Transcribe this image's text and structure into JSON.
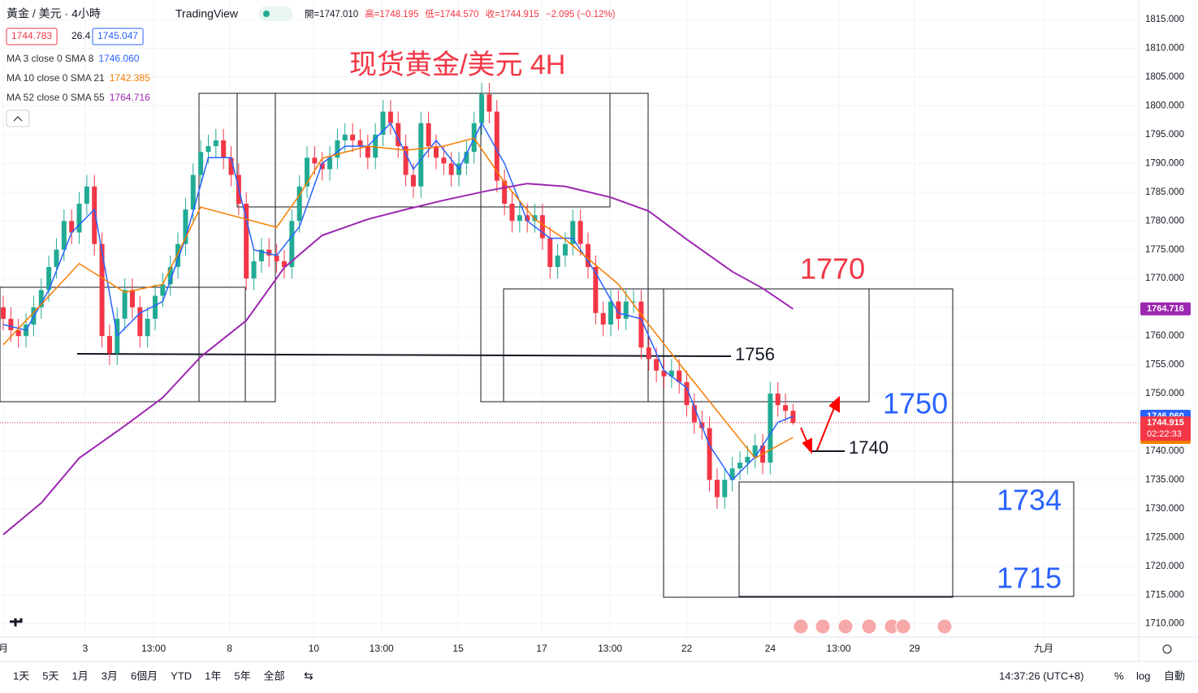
{
  "chart_data": {
    "type": "candlestick",
    "symbol": "黃金 / 美元 · 4小時",
    "brand": "TradingView",
    "ohlc_header": [
      "開=1747.010",
      "高=1748.195",
      "低=1744.570",
      "收=1744.915",
      "−2.095 (−0.12%)"
    ],
    "quote_boxes": [
      "1744.783",
      "26.4",
      "1745.047"
    ],
    "title": "现货黄金/美元 4H",
    "up_color": "#22ab94",
    "down_color": "#f23645",
    "open": [
      1765,
      1763,
      1761,
      1760,
      1762,
      1765,
      1768,
      1772,
      1775,
      1780,
      1778,
      1783,
      1786,
      1776,
      1760,
      1757,
      1763,
      1768,
      1765,
      1760,
      1763,
      1767,
      1769,
      1772,
      1776,
      1782,
      1788,
      1792,
      1793,
      1794,
      1791,
      1788,
      1783,
      1770,
      1773,
      1775,
      1774,
      1773,
      1772,
      1780,
      1786,
      1791,
      1790,
      1789,
      1791,
      1794,
      1795,
      1794,
      1793,
      1791,
      1795,
      1799,
      1797,
      1793,
      1788,
      1786,
      1797,
      1793,
      1791,
      1790,
      1788,
      1790,
      1792,
      1797,
      1802,
      1799,
      1787,
      1783,
      1780,
      1781,
      1780,
      1781,
      1777,
      1772,
      1774,
      1776,
      1780,
      1776,
      1772,
      1764,
      1762,
      1766,
      1763,
      1766,
      1766,
      1758,
      1756,
      1754,
      1753,
      1754,
      1752,
      1748,
      1745,
      1744,
      1735,
      1732,
      1735,
      1737,
      1738,
      1739,
      1741,
      1738,
      1750,
      1748,
      1747.01
    ],
    "high": [
      1767,
      1765,
      1763,
      1764,
      1767,
      1770,
      1774,
      1777,
      1782,
      1782,
      1785,
      1788,
      1788,
      1778,
      1762,
      1765,
      1770,
      1770,
      1767,
      1765,
      1769,
      1771,
      1774,
      1778,
      1784,
      1790,
      1794,
      1795,
      1796,
      1796,
      1793,
      1790,
      1785,
      1775,
      1777,
      1777,
      1776,
      1775,
      1782,
      1788,
      1793,
      1793,
      1792,
      1793,
      1796,
      1797,
      1797,
      1796,
      1795,
      1797,
      1801,
      1801,
      1799,
      1795,
      1790,
      1799,
      1799,
      1795,
      1793,
      1792,
      1792,
      1794,
      1799,
      1804,
      1804,
      1801,
      1789,
      1785,
      1783,
      1783,
      1783,
      1783,
      1779,
      1776,
      1778,
      1782,
      1782,
      1778,
      1774,
      1766,
      1768,
      1768,
      1768,
      1768,
      1768,
      1760,
      1758,
      1756,
      1756,
      1756,
      1754,
      1750,
      1747,
      1746,
      1737,
      1737,
      1739,
      1740,
      1741,
      1743,
      1743,
      1752,
      1752,
      1750,
      1748.195
    ],
    "low": [
      1761,
      1759,
      1758,
      1758,
      1760,
      1763,
      1766,
      1770,
      1773,
      1776,
      1776,
      1781,
      1774,
      1758,
      1755,
      1755,
      1761,
      1763,
      1758,
      1758,
      1761,
      1765,
      1767,
      1770,
      1774,
      1780,
      1786,
      1790,
      1791,
      1789,
      1786,
      1781,
      1768,
      1768,
      1771,
      1772,
      1771,
      1770,
      1770,
      1778,
      1784,
      1788,
      1787,
      1787,
      1789,
      1792,
      1792,
      1791,
      1789,
      1789,
      1793,
      1795,
      1791,
      1786,
      1784,
      1784,
      1791,
      1789,
      1788,
      1786,
      1786,
      1788,
      1790,
      1795,
      1797,
      1785,
      1781,
      1778,
      1778,
      1778,
      1778,
      1775,
      1770,
      1770,
      1772,
      1774,
      1774,
      1770,
      1762,
      1760,
      1760,
      1761,
      1761,
      1764,
      1756,
      1754,
      1752,
      1751,
      1751,
      1750,
      1746,
      1743,
      1742,
      1733,
      1730,
      1730,
      1733,
      1735,
      1736,
      1737,
      1736,
      1736,
      1746,
      1745,
      1744.57
    ],
    "close": [
      1763,
      1761,
      1760,
      1762,
      1765,
      1768,
      1772,
      1775,
      1780,
      1778,
      1783,
      1786,
      1776,
      1760,
      1757,
      1763,
      1768,
      1765,
      1760,
      1763,
      1767,
      1769,
      1772,
      1776,
      1782,
      1788,
      1792,
      1793,
      1794,
      1791,
      1788,
      1783,
      1770,
      1773,
      1775,
      1774,
      1773,
      1772,
      1780,
      1786,
      1791,
      1790,
      1789,
      1791,
      1794,
      1795,
      1794,
      1793,
      1791,
      1795,
      1799,
      1797,
      1793,
      1788,
      1786,
      1797,
      1793,
      1791,
      1790,
      1788,
      1790,
      1792,
      1797,
      1802,
      1799,
      1787,
      1783,
      1780,
      1781,
      1780,
      1781,
      1777,
      1772,
      1774,
      1776,
      1780,
      1776,
      1772,
      1764,
      1762,
      1766,
      1763,
      1766,
      1766,
      1758,
      1756,
      1754,
      1753,
      1754,
      1752,
      1748,
      1745,
      1744,
      1735,
      1732,
      1735,
      1737,
      1738,
      1739,
      1741,
      1738,
      1750,
      1748,
      1747,
      1744.915
    ],
    "last_price_label": "1744.915",
    "countdown": "02:22:33",
    "series": [
      {
        "name": "MA 3 close 0 SMA 8",
        "color": "#2962ff",
        "last_label": "1746.060",
        "x": [
          0,
          3,
          6,
          9,
          12,
          15,
          18,
          21,
          24,
          27,
          30,
          33,
          36,
          39,
          42,
          45,
          48,
          51,
          54,
          57,
          60,
          63,
          66,
          69,
          72,
          75,
          78,
          81,
          84,
          87,
          90,
          93,
          96,
          99,
          102,
          104
        ],
        "values": [
          1762,
          1761,
          1768,
          1778,
          1782,
          1760,
          1764,
          1766,
          1777,
          1791,
          1791,
          1775,
          1774,
          1779,
          1790,
          1793,
          1793,
          1797,
          1789,
          1794,
          1789,
          1797,
          1790,
          1780,
          1777,
          1777,
          1771,
          1764,
          1763,
          1754,
          1751,
          1741,
          1735,
          1739,
          1745,
          1746.06
        ]
      },
      {
        "name": "MA 10 close 0 SMA 21",
        "color": "#f57c00",
        "last_label": "1742.385",
        "x": [
          0,
          5,
          10,
          16,
          21,
          26,
          32,
          36,
          39,
          42,
          48,
          53,
          58,
          62,
          66,
          70,
          74,
          81,
          85,
          90,
          96,
          99,
          104
        ],
        "values": [
          1758.5,
          1765.5,
          1772.6,
          1767.6,
          1769,
          1782.4,
          1780.3,
          1778.9,
          1784.5,
          1790.9,
          1793,
          1792.3,
          1793,
          1794.4,
          1786.7,
          1780.3,
          1776.8,
          1769,
          1762,
          1753.6,
          1743.7,
          1738.8,
          1742.385
        ]
      },
      {
        "name": "MA 52 close 0 SMA 55",
        "color": "#9c27b0",
        "last_label": "1764.716",
        "x": [
          0,
          5,
          10,
          16,
          21,
          26,
          32,
          37,
          42,
          48,
          53,
          58,
          64,
          69,
          74,
          80,
          85,
          90,
          96,
          100,
          104
        ],
        "values": [
          1725.5,
          1731,
          1738.8,
          1744.4,
          1749.3,
          1756.4,
          1762.7,
          1771.9,
          1777.5,
          1780.3,
          1782,
          1783.6,
          1785.3,
          1786.5,
          1786,
          1784.1,
          1781.7,
          1776.8,
          1771.2,
          1768.3,
          1764.716
        ]
      }
    ],
    "annotations": [
      "1770",
      "1756",
      "1750",
      "1740",
      "1734",
      "1715"
    ],
    "xlim": [
      -0.43,
      149.3
    ],
    "ylim": [
      1707.7,
      1818.4
    ],
    "yticks": [
      {
        "value": 1815,
        "label": "1815.000"
      },
      {
        "value": 1810,
        "label": "1810.000"
      },
      {
        "value": 1805,
        "label": "1805.000"
      },
      {
        "value": 1800,
        "label": "1800.000"
      },
      {
        "value": 1795,
        "label": "1795.000"
      },
      {
        "value": 1790,
        "label": "1790.000"
      },
      {
        "value": 1785,
        "label": "1785.000"
      },
      {
        "value": 1780,
        "label": "1780.000"
      },
      {
        "value": 1775,
        "label": "1775.000"
      },
      {
        "value": 1770,
        "label": "1770.000"
      },
      {
        "value": 1765,
        "label": "1765.000"
      },
      {
        "value": 1760,
        "label": "1760.000"
      },
      {
        "value": 1755,
        "label": "1755.000"
      },
      {
        "value": 1750,
        "label": "1750.000"
      },
      {
        "value": 1745,
        "label": "1745.000"
      },
      {
        "value": 1740,
        "label": "1740.000"
      },
      {
        "value": 1735,
        "label": "1735.000"
      },
      {
        "value": 1730,
        "label": "1730.000"
      },
      {
        "value": 1725,
        "label": "1725.000"
      },
      {
        "value": 1720,
        "label": "1720.000"
      },
      {
        "value": 1715,
        "label": "1715.000"
      },
      {
        "value": 1710,
        "label": "1710.000"
      }
    ],
    "xticks": [
      {
        "value": 0,
        "label": "月"
      },
      {
        "value": 10.8,
        "label": "3"
      },
      {
        "value": 19.8,
        "label": "13:00"
      },
      {
        "value": 29.8,
        "label": "8"
      },
      {
        "value": 40.9,
        "label": "10"
      },
      {
        "value": 49.8,
        "label": "13:00"
      },
      {
        "value": 59.9,
        "label": "15"
      },
      {
        "value": 70.9,
        "label": "17"
      },
      {
        "value": 79.9,
        "label": "13:00"
      },
      {
        "value": 90,
        "label": "22"
      },
      {
        "value": 101,
        "label": "24"
      },
      {
        "value": 110,
        "label": "13:00"
      },
      {
        "value": 120,
        "label": "29"
      },
      {
        "value": 137,
        "label": "九月"
      }
    ],
    "range_buttons": [
      "1天",
      "5天",
      "1月",
      "3月",
      "6個月",
      "YTD",
      "1年",
      "5年",
      "全部"
    ],
    "clock": "14:37:26 (UTC+8)",
    "scale_buttons": [
      "%",
      "log",
      "自動"
    ]
  }
}
